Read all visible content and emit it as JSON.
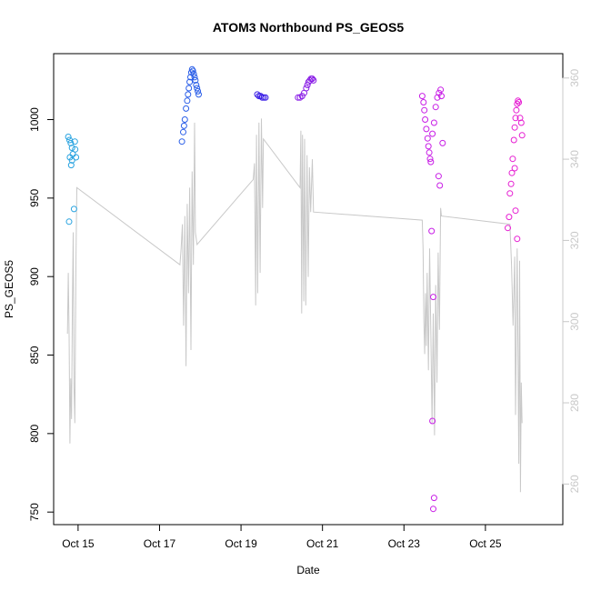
{
  "chart_data": {
    "type": "scatter",
    "title": "ATOM3 Northbound PS_GEOS5",
    "xlabel": "Date",
    "ylabel": "PS_GEOS5",
    "x_unit": "days in October",
    "xlim": [
      14.4,
      26.9
    ],
    "ylim": [
      742,
      1042
    ],
    "y2lim": [
      250,
      366
    ],
    "x_ticks": [
      {
        "value": 15,
        "label": "Oct 15"
      },
      {
        "value": 17,
        "label": "Oct 17"
      },
      {
        "value": 19,
        "label": "Oct 19"
      },
      {
        "value": 21,
        "label": "Oct 21"
      },
      {
        "value": 23,
        "label": "Oct 23"
      },
      {
        "value": 25,
        "label": "Oct 25"
      }
    ],
    "y_ticks": [
      750,
      800,
      850,
      900,
      950,
      1000
    ],
    "y2_ticks": [
      260,
      280,
      300,
      320,
      340,
      360
    ],
    "grid": false,
    "colors": {
      "axis": "#000000",
      "secondary_axis": "#c8c8c8",
      "line": "#c8c8c8"
    },
    "series": [
      {
        "color": "#29a3e0",
        "points": [
          [
            14.76,
            989
          ],
          [
            14.79,
            987
          ],
          [
            14.82,
            985
          ],
          [
            14.85,
            982
          ],
          [
            14.8,
            976
          ],
          [
            14.87,
            978
          ],
          [
            14.85,
            974
          ],
          [
            14.83,
            971
          ],
          [
            14.92,
            986
          ],
          [
            14.93,
            981
          ],
          [
            14.95,
            976
          ],
          [
            14.9,
            943
          ],
          [
            14.78,
            935
          ]
        ]
      },
      {
        "color": "#2a5ee8",
        "points": [
          [
            17.55,
            986
          ],
          [
            17.58,
            992
          ],
          [
            17.6,
            996
          ],
          [
            17.62,
            1000
          ],
          [
            17.65,
            1007
          ],
          [
            17.68,
            1012
          ],
          [
            17.7,
            1016
          ],
          [
            17.72,
            1020
          ],
          [
            17.74,
            1024
          ],
          [
            17.76,
            1027
          ],
          [
            17.78,
            1030
          ],
          [
            17.8,
            1032
          ],
          [
            17.82,
            1031
          ],
          [
            17.84,
            1029
          ],
          [
            17.86,
            1027
          ],
          [
            17.88,
            1025
          ],
          [
            17.9,
            1022
          ],
          [
            17.92,
            1020
          ],
          [
            17.94,
            1018
          ],
          [
            17.96,
            1016
          ]
        ]
      },
      {
        "color": "#3a1ee6",
        "points": [
          [
            19.4,
            1016
          ],
          [
            19.44,
            1015
          ],
          [
            19.48,
            1015
          ],
          [
            19.52,
            1014
          ],
          [
            19.56,
            1014
          ],
          [
            19.6,
            1014
          ]
        ]
      },
      {
        "color": "#8a1ee6",
        "points": [
          [
            20.4,
            1014
          ],
          [
            20.45,
            1014
          ],
          [
            20.5,
            1015
          ],
          [
            20.55,
            1017
          ],
          [
            20.6,
            1020
          ],
          [
            20.63,
            1022
          ],
          [
            20.66,
            1024
          ],
          [
            20.69,
            1025
          ],
          [
            20.72,
            1026
          ],
          [
            20.75,
            1026
          ],
          [
            20.78,
            1025
          ]
        ]
      },
      {
        "color": "#c81ee6",
        "points": [
          [
            23.45,
            1015
          ],
          [
            23.48,
            1011
          ],
          [
            23.5,
            1006
          ],
          [
            23.52,
            1000
          ],
          [
            23.55,
            994
          ],
          [
            23.58,
            988
          ],
          [
            23.6,
            983
          ],
          [
            23.62,
            979
          ],
          [
            23.64,
            975
          ],
          [
            23.66,
            973
          ],
          [
            23.7,
            991
          ],
          [
            23.74,
            998
          ],
          [
            23.78,
            1008
          ],
          [
            23.82,
            1014
          ],
          [
            23.86,
            1017
          ],
          [
            23.9,
            1019
          ],
          [
            23.92,
            1015
          ],
          [
            23.95,
            985
          ],
          [
            23.85,
            964
          ],
          [
            23.88,
            958
          ],
          [
            23.68,
            929
          ],
          [
            23.72,
            887
          ],
          [
            23.7,
            808
          ],
          [
            23.74,
            759
          ],
          [
            23.72,
            752
          ]
        ]
      },
      {
        "color": "#e61ed2",
        "points": [
          [
            25.55,
            931
          ],
          [
            25.58,
            938
          ],
          [
            25.6,
            953
          ],
          [
            25.63,
            959
          ],
          [
            25.65,
            966
          ],
          [
            25.67,
            975
          ],
          [
            25.7,
            987
          ],
          [
            25.72,
            995
          ],
          [
            25.74,
            1001
          ],
          [
            25.76,
            1006
          ],
          [
            25.78,
            1010
          ],
          [
            25.8,
            1012
          ],
          [
            25.82,
            1011
          ],
          [
            25.85,
            1001
          ],
          [
            25.88,
            998
          ],
          [
            25.9,
            990
          ],
          [
            25.72,
            969
          ],
          [
            25.74,
            942
          ],
          [
            25.78,
            924
          ]
        ]
      }
    ],
    "secondary_line": {
      "axis": "right",
      "points": [
        [
          14.74,
          297
        ],
        [
          14.76,
          312
        ],
        [
          14.78,
          297
        ],
        [
          14.8,
          270
        ],
        [
          14.82,
          286
        ],
        [
          14.84,
          276
        ],
        [
          14.86,
          304
        ],
        [
          14.88,
          322
        ],
        [
          14.9,
          284
        ],
        [
          14.92,
          275
        ],
        [
          14.95,
          316
        ],
        [
          14.97,
          333
        ],
        [
          17.5,
          314
        ],
        [
          17.53,
          318
        ],
        [
          17.56,
          324
        ],
        [
          17.59,
          299
        ],
        [
          17.62,
          326
        ],
        [
          17.65,
          289
        ],
        [
          17.68,
          329
        ],
        [
          17.71,
          307
        ],
        [
          17.74,
          333
        ],
        [
          17.77,
          293
        ],
        [
          17.8,
          337
        ],
        [
          17.83,
          314
        ],
        [
          17.86,
          349
        ],
        [
          17.88,
          322
        ],
        [
          17.92,
          319
        ],
        [
          19.3,
          335
        ],
        [
          19.33,
          339
        ],
        [
          19.36,
          304
        ],
        [
          19.38,
          346
        ],
        [
          19.41,
          307
        ],
        [
          19.44,
          349
        ],
        [
          19.47,
          312
        ],
        [
          19.5,
          350
        ],
        [
          19.53,
          328
        ],
        [
          19.55,
          345
        ],
        [
          20.45,
          333
        ],
        [
          20.47,
          347
        ],
        [
          20.49,
          302
        ],
        [
          20.51,
          346
        ],
        [
          20.54,
          305
        ],
        [
          20.56,
          345
        ],
        [
          20.59,
          304
        ],
        [
          20.62,
          341
        ],
        [
          20.65,
          311
        ],
        [
          20.68,
          338
        ],
        [
          20.71,
          327
        ],
        [
          20.75,
          340
        ],
        [
          20.78,
          327
        ],
        [
          23.45,
          325
        ],
        [
          23.47,
          318
        ],
        [
          23.49,
          300
        ],
        [
          23.51,
          292
        ],
        [
          23.53,
          307
        ],
        [
          23.55,
          294
        ],
        [
          23.57,
          312
        ],
        [
          23.6,
          288
        ],
        [
          23.63,
          318
        ],
        [
          23.66,
          298
        ],
        [
          23.69,
          275
        ],
        [
          23.72,
          302
        ],
        [
          23.75,
          272
        ],
        [
          23.78,
          309
        ],
        [
          23.81,
          285
        ],
        [
          23.84,
          317
        ],
        [
          23.87,
          298
        ],
        [
          23.9,
          328
        ],
        [
          23.92,
          326
        ],
        [
          25.6,
          324
        ],
        [
          25.64,
          314
        ],
        [
          25.68,
          299
        ],
        [
          25.72,
          316
        ],
        [
          25.74,
          277
        ],
        [
          25.78,
          318
        ],
        [
          25.82,
          265
        ],
        [
          25.84,
          315
        ],
        [
          25.86,
          258
        ],
        [
          25.88,
          285
        ],
        [
          25.9,
          275
        ]
      ]
    }
  }
}
